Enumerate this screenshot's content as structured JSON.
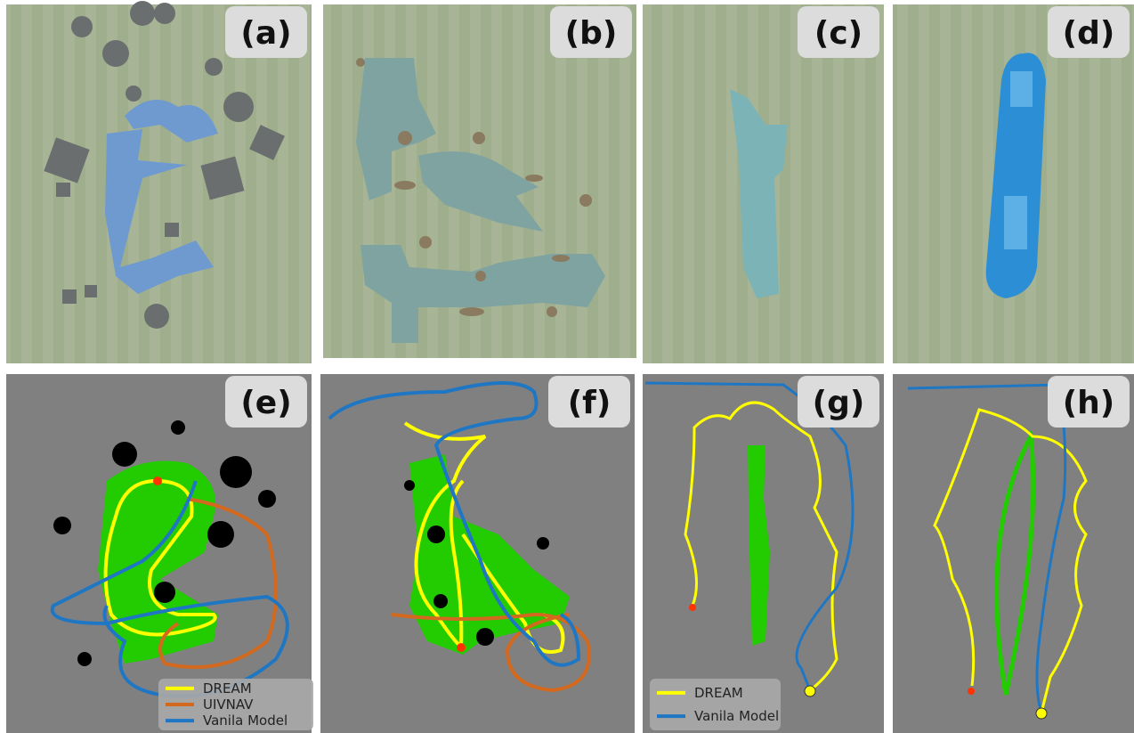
{
  "panels": [
    {
      "label": "(a)"
    },
    {
      "label": "(b)"
    },
    {
      "label": "(c)"
    },
    {
      "label": "(d)"
    },
    {
      "label": "(e)",
      "legend": [
        {
          "name": "DREAM",
          "color": "#ffff00"
        },
        {
          "name": "UIVNAV",
          "color": "#d2691e"
        },
        {
          "name": "Vanila Model",
          "color": "#1f77c4"
        }
      ]
    },
    {
      "label": "(f)"
    },
    {
      "label": "(g)",
      "legend": [
        {
          "name": "DREAM",
          "color": "#ffff00"
        },
        {
          "name": "Vanila Model",
          "color": "#1f77c4"
        }
      ]
    },
    {
      "label": "(h)"
    }
  ]
}
